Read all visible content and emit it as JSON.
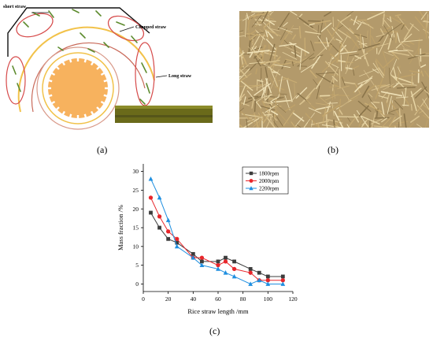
{
  "panel_labels": {
    "a": "(a)",
    "b": "(b)",
    "c": "(c)"
  },
  "panel_a": {
    "annotations": {
      "short": "short straw",
      "chopped": "Chopped straw",
      "long": "Long straw"
    }
  },
  "chart_data": {
    "type": "line",
    "xlabel": "Rice straw length /mm",
    "ylabel": "Mass fraction /%",
    "xlim": [
      0,
      120
    ],
    "ylim": [
      -2,
      32
    ],
    "xticks": [
      0,
      20,
      40,
      60,
      80,
      100,
      120
    ],
    "yticks": [
      0,
      5,
      10,
      15,
      20,
      25,
      30
    ],
    "legend_position": "top-right",
    "grid": false,
    "series": [
      {
        "name": "1800rpm",
        "color": "#3c3c3c",
        "marker": "square",
        "x": [
          6,
          13,
          20,
          27,
          40,
          47,
          60,
          66,
          73,
          86,
          93,
          100,
          112
        ],
        "y": [
          19,
          15,
          12,
          11,
          8,
          6,
          6,
          7,
          6,
          4,
          3,
          2,
          2
        ]
      },
      {
        "name": "2000rpm",
        "color": "#e8262b",
        "marker": "circle",
        "x": [
          6,
          13,
          20,
          27,
          40,
          47,
          60,
          66,
          73,
          86,
          93,
          100,
          112
        ],
        "y": [
          23,
          18,
          14,
          12,
          7,
          7,
          5,
          6,
          4,
          3,
          1,
          1,
          1
        ]
      },
      {
        "name": "2200rpm",
        "color": "#1f8fe0",
        "marker": "triangle",
        "x": [
          6,
          13,
          20,
          27,
          40,
          47,
          60,
          66,
          73,
          86,
          93,
          100,
          112
        ],
        "y": [
          28,
          23,
          17,
          10,
          7,
          5,
          4,
          3,
          2,
          0,
          1,
          0,
          0
        ]
      }
    ]
  }
}
